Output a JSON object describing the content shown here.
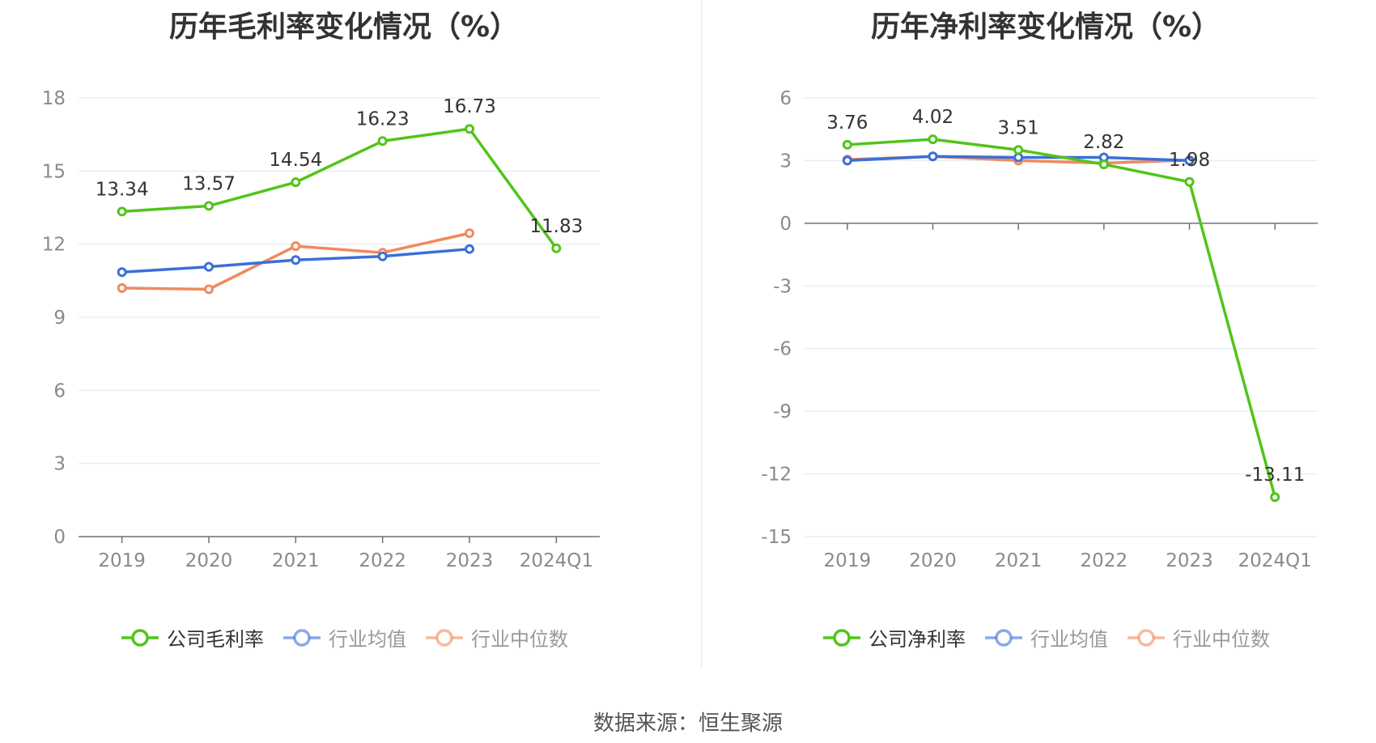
{
  "source_text": "数据来源：恒生聚源",
  "colors": {
    "company": "#52c41a",
    "avg": "#3b6fd8",
    "median": "#f08a5d",
    "grid": "#e0e6f1",
    "axis": "#6e7079"
  },
  "chart_data": [
    {
      "type": "line",
      "title": "历年毛利率变化情况（%）",
      "categories": [
        "2019",
        "2020",
        "2021",
        "2022",
        "2023",
        "2024Q1"
      ],
      "ylim": [
        0,
        18
      ],
      "yticks": [
        0,
        3,
        6,
        9,
        12,
        15,
        18
      ],
      "grid": true,
      "legend_position": "bottom",
      "series": [
        {
          "name": "公司毛利率",
          "key": "company",
          "values": [
            13.34,
            13.57,
            14.54,
            16.23,
            16.73,
            11.83
          ],
          "labels": [
            "13.34",
            "13.57",
            "14.54",
            "16.23",
            "16.73",
            "11.83"
          ]
        },
        {
          "name": "行业均值",
          "key": "avg",
          "values": [
            10.85,
            11.07,
            11.35,
            11.5,
            11.8,
            null
          ]
        },
        {
          "name": "行业中位数",
          "key": "median",
          "values": [
            10.2,
            10.15,
            11.92,
            11.65,
            12.45,
            null
          ]
        }
      ]
    },
    {
      "type": "line",
      "title": "历年净利率变化情况（%）",
      "categories": [
        "2019",
        "2020",
        "2021",
        "2022",
        "2023",
        "2024Q1"
      ],
      "ylim": [
        -15,
        6
      ],
      "yticks": [
        -15,
        -12,
        -9,
        -6,
        -3,
        0,
        3,
        6
      ],
      "grid": true,
      "legend_position": "bottom",
      "series": [
        {
          "name": "公司净利率",
          "key": "company",
          "values": [
            3.76,
            4.02,
            3.51,
            2.82,
            1.98,
            -13.11
          ],
          "labels": [
            "3.76",
            "4.02",
            "3.51",
            "2.82",
            "1.98",
            "-13.11"
          ]
        },
        {
          "name": "行业均值",
          "key": "avg",
          "values": [
            3.0,
            3.2,
            3.15,
            3.15,
            3.0,
            null
          ]
        },
        {
          "name": "行业中位数",
          "key": "median",
          "values": [
            3.05,
            3.2,
            3.0,
            2.88,
            3.02,
            null
          ]
        }
      ]
    }
  ]
}
